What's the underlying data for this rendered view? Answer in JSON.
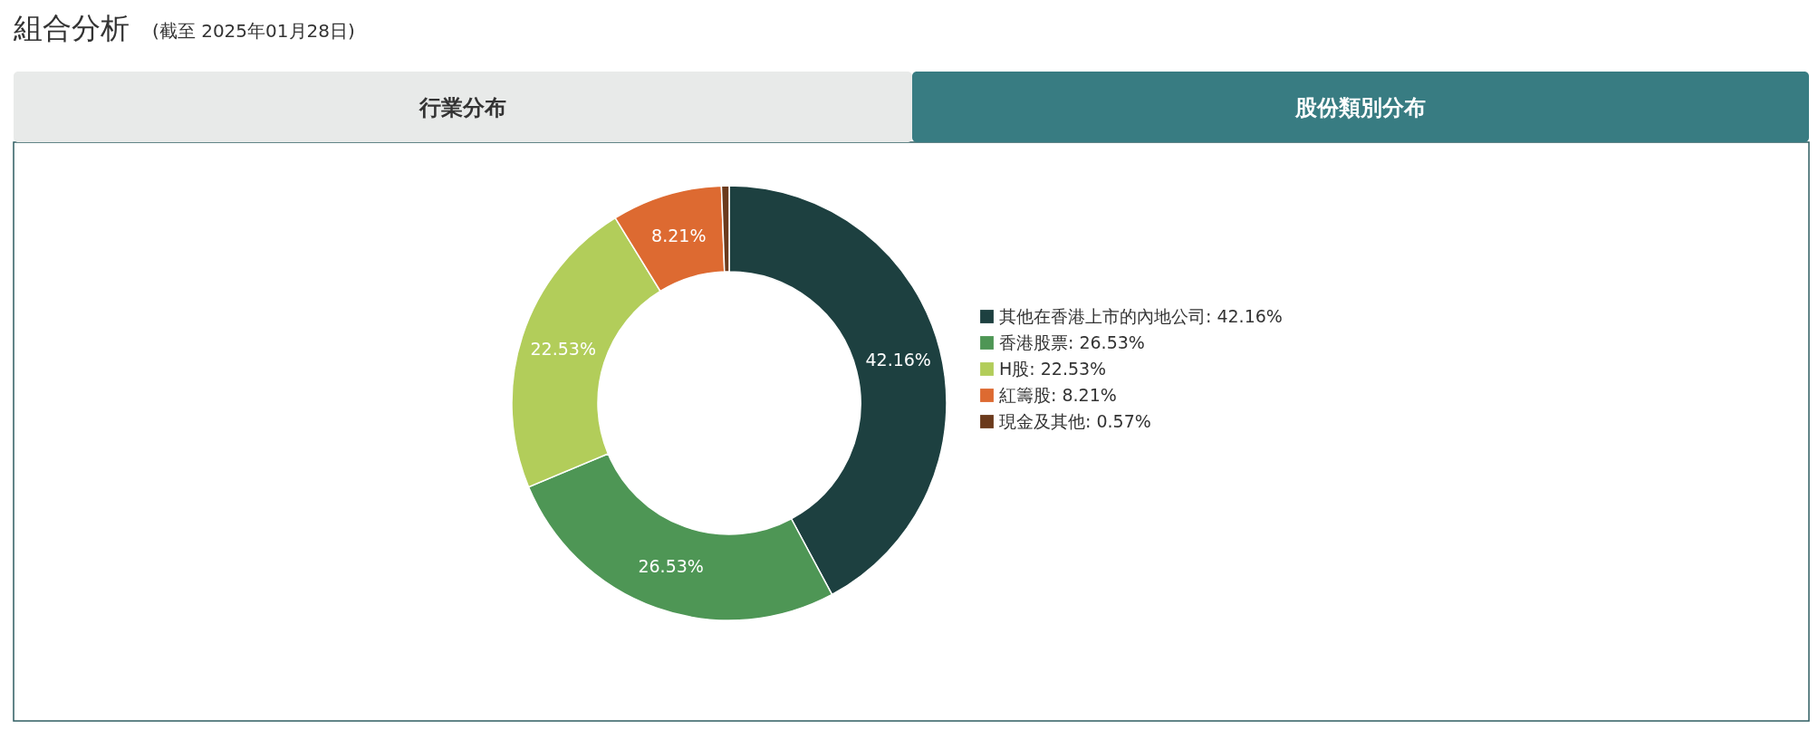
{
  "chart_data": {
    "type": "donut",
    "title": "組合分析",
    "subtitle": "(截至 2025年01月28日)",
    "annotations": [
      "行業分布",
      "股份類別分布"
    ],
    "categories": [
      "其他在香港上市的內地公司: 42.16%",
      "香港股票: 26.53%",
      "H股: 22.53%",
      "紅籌股: 8.21%",
      "現金及其他: 0.57%"
    ],
    "values": [
      42.16,
      26.53,
      22.53,
      8.21,
      0.57
    ],
    "colors": [
      "#1d4040",
      "#4e9655",
      "#b2cd5a",
      "#dd6a31",
      "#6b3a1c"
    ],
    "value_labels": [
      "42.16%",
      "26.53%",
      "22.53%",
      "8.21%",
      null
    ],
    "legend": "right"
  }
}
